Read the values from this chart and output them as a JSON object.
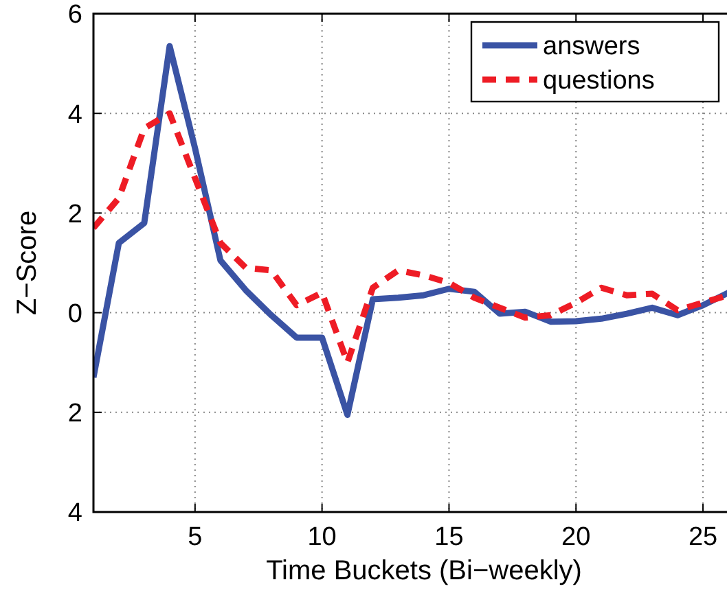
{
  "chart_data": {
    "type": "line",
    "xlabel": "Time Buckets (Bi−weekly)",
    "ylabel": "Z−Score",
    "x": [
      1,
      2,
      3,
      4,
      5,
      6,
      7,
      8,
      9,
      10,
      11,
      12,
      13,
      14,
      15,
      16,
      17,
      18,
      19,
      20,
      21,
      22,
      23,
      24,
      25,
      26
    ],
    "series": [
      {
        "name": "answers",
        "color": "#3a53a4",
        "line_style": "solid",
        "values": [
          -1.3,
          1.4,
          1.8,
          5.35,
          3.3,
          1.05,
          0.45,
          -0.05,
          -0.5,
          -0.5,
          -2.05,
          0.27,
          0.3,
          0.35,
          0.48,
          0.42,
          -0.02,
          0.02,
          -0.18,
          -0.17,
          -0.12,
          -0.02,
          0.1,
          -0.05,
          0.15,
          0.4
        ]
      },
      {
        "name": "questions",
        "color": "#ee1c25",
        "line_style": "dashed",
        "values": [
          1.7,
          2.3,
          3.7,
          4.0,
          2.7,
          1.4,
          0.9,
          0.85,
          0.15,
          0.4,
          -1.0,
          0.5,
          0.85,
          0.75,
          0.6,
          0.3,
          0.1,
          -0.1,
          -0.05,
          0.2,
          0.5,
          0.35,
          0.38,
          0.05,
          0.2,
          0.35
        ]
      }
    ],
    "xlim": [
      1,
      26
    ],
    "xticks": [
      5,
      10,
      15,
      20,
      25
    ],
    "ylim": [
      -4,
      6
    ],
    "yticks": [
      {
        "value": -4,
        "label": "4"
      },
      {
        "value": -2,
        "label": "2"
      },
      0,
      2,
      4,
      6
    ],
    "grid": true,
    "legend": "top right",
    "marker": "none"
  }
}
